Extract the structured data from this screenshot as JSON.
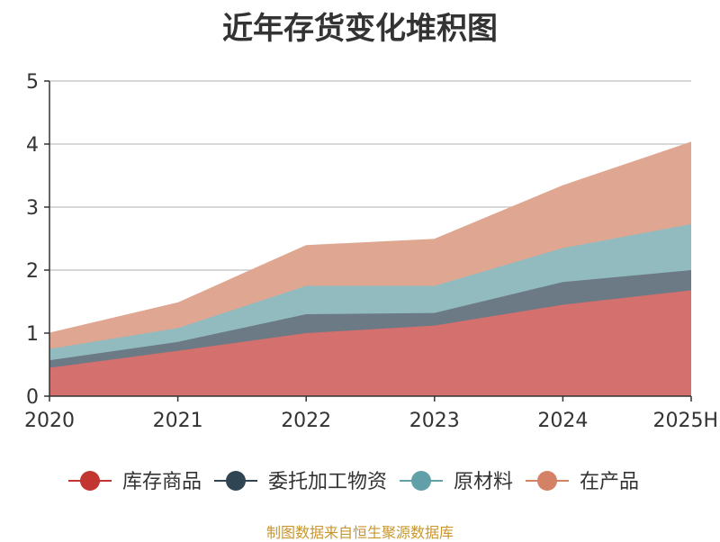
{
  "chart_data": {
    "type": "area",
    "stacked": true,
    "title": "近年存货变化堆积图",
    "categories": [
      "2020",
      "2021",
      "2022",
      "2023",
      "2024",
      "2025H"
    ],
    "ylim": [
      0,
      5
    ],
    "yticks": [
      "0",
      "1",
      "2",
      "3",
      "4",
      "5"
    ],
    "grid": true,
    "legend_position": "bottom",
    "series": [
      {
        "name": "库存商品",
        "color": "#c23531",
        "fill": "#d4706d",
        "values": [
          0.45,
          0.72,
          1.0,
          1.12,
          1.45,
          1.68
        ]
      },
      {
        "name": "委托加工物资",
        "color": "#2f4554",
        "fill": "#6c7a86",
        "values": [
          0.12,
          0.14,
          0.3,
          0.2,
          0.36,
          0.32
        ]
      },
      {
        "name": "原材料",
        "color": "#61a0a8",
        "fill": "#92bbc0",
        "values": [
          0.18,
          0.22,
          0.45,
          0.43,
          0.54,
          0.73
        ]
      },
      {
        "name": "在产品",
        "color": "#d48265",
        "fill": "#dfa792",
        "values": [
          0.25,
          0.4,
          0.64,
          0.74,
          0.99,
          1.3
        ]
      }
    ]
  },
  "source_note": "制图数据来自恒生聚源数据库"
}
